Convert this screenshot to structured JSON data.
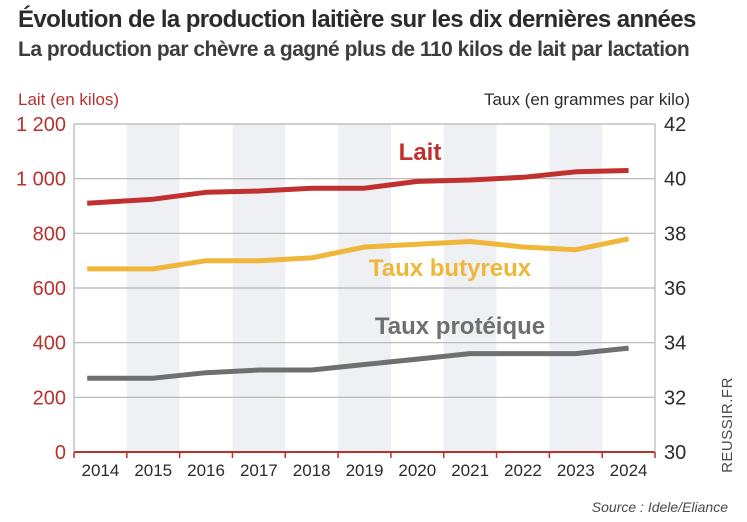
{
  "title": "Évolution de la production laitière sur les dix dernières années",
  "subtitle": "La production par chèvre a gagné plus de 110 kilos de lait par lactation",
  "credit": "REUSSIR.FR",
  "source": "Source : Idele/Eliance",
  "colors": {
    "lait": "#c0302f",
    "butyreux": "#efb63a",
    "proteique": "#6f6f6f",
    "band": "#eef0f4",
    "grid": "#b5b5b5",
    "axis": "#b8312f"
  },
  "chart_data": {
    "type": "line",
    "x": [
      "2014",
      "2015",
      "2016",
      "2017",
      "2018",
      "2019",
      "2020",
      "2021",
      "2022",
      "2023",
      "2024"
    ],
    "left_axis": {
      "label": "Lait (en kilos)",
      "range": [
        0,
        1200
      ],
      "ticks": [
        "0",
        "200",
        "400",
        "600",
        "800",
        "1 000",
        "1 200"
      ]
    },
    "right_axis": {
      "label": "Taux (en grammes par kilo)",
      "range": [
        30,
        42
      ],
      "ticks": [
        "30",
        "32",
        "34",
        "36",
        "38",
        "40",
        "42"
      ]
    },
    "series": [
      {
        "name": "Lait",
        "axis": "left",
        "color": "#c0302f",
        "values": [
          910,
          925,
          950,
          955,
          965,
          965,
          990,
          995,
          1005,
          1025,
          1030
        ]
      },
      {
        "name": "Taux butyreux",
        "axis": "right",
        "color": "#efb63a",
        "values": [
          36.7,
          36.7,
          37.0,
          37.0,
          37.1,
          37.5,
          37.6,
          37.7,
          37.5,
          37.4,
          37.8
        ]
      },
      {
        "name": "Taux protéique",
        "axis": "right",
        "color": "#6f6f6f",
        "values": [
          32.7,
          32.7,
          32.9,
          33.0,
          33.0,
          33.2,
          33.4,
          33.6,
          33.6,
          33.6,
          33.8
        ]
      }
    ]
  }
}
